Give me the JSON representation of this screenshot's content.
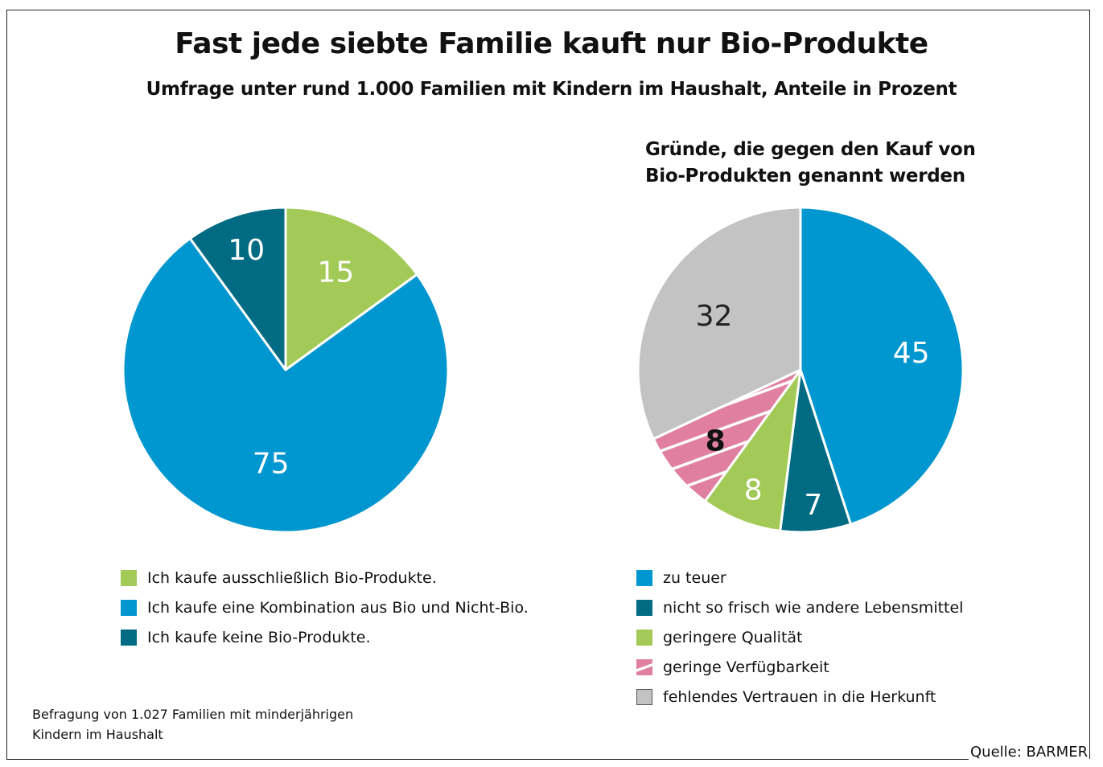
{
  "header": {
    "title": "Fast jede siebte Familie kauft nur Bio-Produkte",
    "subtitle": "Umfrage unter rund 1.000 Familien mit Kindern im Haushalt, Anteile in Prozent"
  },
  "right_chart_title": [
    "Gründe, die gegen den Kauf von",
    "Bio-Produkten genannt werden"
  ],
  "colors": {
    "blue": "#0096cf",
    "teal": "#006b82",
    "green": "#a3c957",
    "pink": "#e07fa0",
    "grey": "#c3c3c3"
  },
  "chart_data": [
    {
      "type": "pie",
      "title": "Kaufverhalten Bio-Produkte",
      "start": "12 o'clock, clockwise",
      "slices": [
        {
          "label": "Ich kaufe ausschließlich Bio-Produkte.",
          "value": 15,
          "display": "15",
          "color": "#a3c957",
          "text_color": "#ffffff",
          "pattern": "none"
        },
        {
          "label": "Ich kaufe eine Kombination aus Bio und Nicht-Bio.",
          "value": 75,
          "display": "75",
          "color": "#0096cf",
          "text_color": "#ffffff",
          "pattern": "none"
        },
        {
          "label": "Ich kaufe keine Bio-Produkte.",
          "value": 10,
          "display": "10",
          "color": "#006b82",
          "text_color": "#ffffff",
          "pattern": "none"
        }
      ],
      "legend_order": [
        0,
        1,
        2
      ],
      "legend_position": "bottom"
    },
    {
      "type": "pie",
      "title": "Gründe, die gegen den Kauf von Bio-Produkten genannt werden",
      "start": "12 o'clock, clockwise",
      "slices": [
        {
          "label": "zu teuer",
          "value": 45,
          "display": "45",
          "color": "#0096cf",
          "text_color": "#ffffff",
          "pattern": "none"
        },
        {
          "label": "nicht so frisch wie andere Lebensmittel",
          "value": 7,
          "display": "7",
          "color": "#006b82",
          "text_color": "#ffffff",
          "pattern": "none"
        },
        {
          "label": "geringere Qualität",
          "value": 8,
          "display": "8",
          "color": "#a3c957",
          "text_color": "#ffffff",
          "pattern": "none"
        },
        {
          "label": "geringe Verfügbarkeit",
          "value": 8,
          "display": "8",
          "color": "#e07fa0",
          "text_color": "#111111",
          "pattern": "hatched"
        },
        {
          "label": "fehlendes Vertrauen in die Herkunft",
          "value": 32,
          "display": "32",
          "color": "#c3c3c3",
          "text_color": "#222222",
          "pattern": "none"
        }
      ],
      "legend_order": [
        0,
        1,
        2,
        3,
        4
      ],
      "legend_position": "bottom"
    }
  ],
  "footnote": [
    "Befragung von 1.027 Familien mit minderjährigen",
    "Kindern im Haushalt"
  ],
  "source": "Quelle: BARMER"
}
